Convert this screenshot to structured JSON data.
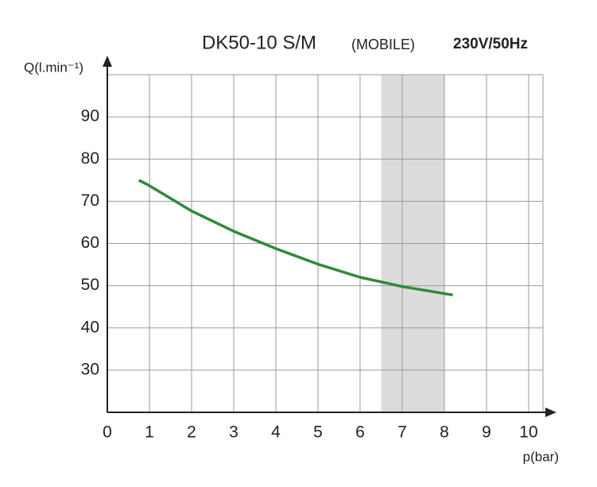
{
  "chart_data": {
    "type": "line",
    "title": "DK50-10 S/M",
    "subtitle": "(MOBILE)",
    "annotation": "230V/50Hz",
    "x_label": "p(bar)",
    "y_label": "Q(l.min⁻¹)",
    "x": [
      0.75,
      1,
      2,
      3,
      4,
      5,
      6,
      7,
      8.2
    ],
    "series": [
      {
        "name": "DK50-10 S/M",
        "color": "#2e8b3a",
        "values": [
          75,
          73.7,
          67.7,
          62.9,
          58.8,
          55.1,
          52,
          49.8,
          47.8
        ]
      }
    ],
    "shaded_range": [
      6.5,
      8
    ],
    "shaded_color": "#dcdcdc",
    "xlim": [
      0,
      10.34
    ],
    "xticks": [
      0,
      1,
      2,
      3,
      4,
      5,
      6,
      7,
      8,
      9,
      10
    ],
    "ylim": [
      20,
      100
    ],
    "yticks": [
      30,
      40,
      50,
      60,
      70,
      80,
      90
    ],
    "grid": true
  }
}
